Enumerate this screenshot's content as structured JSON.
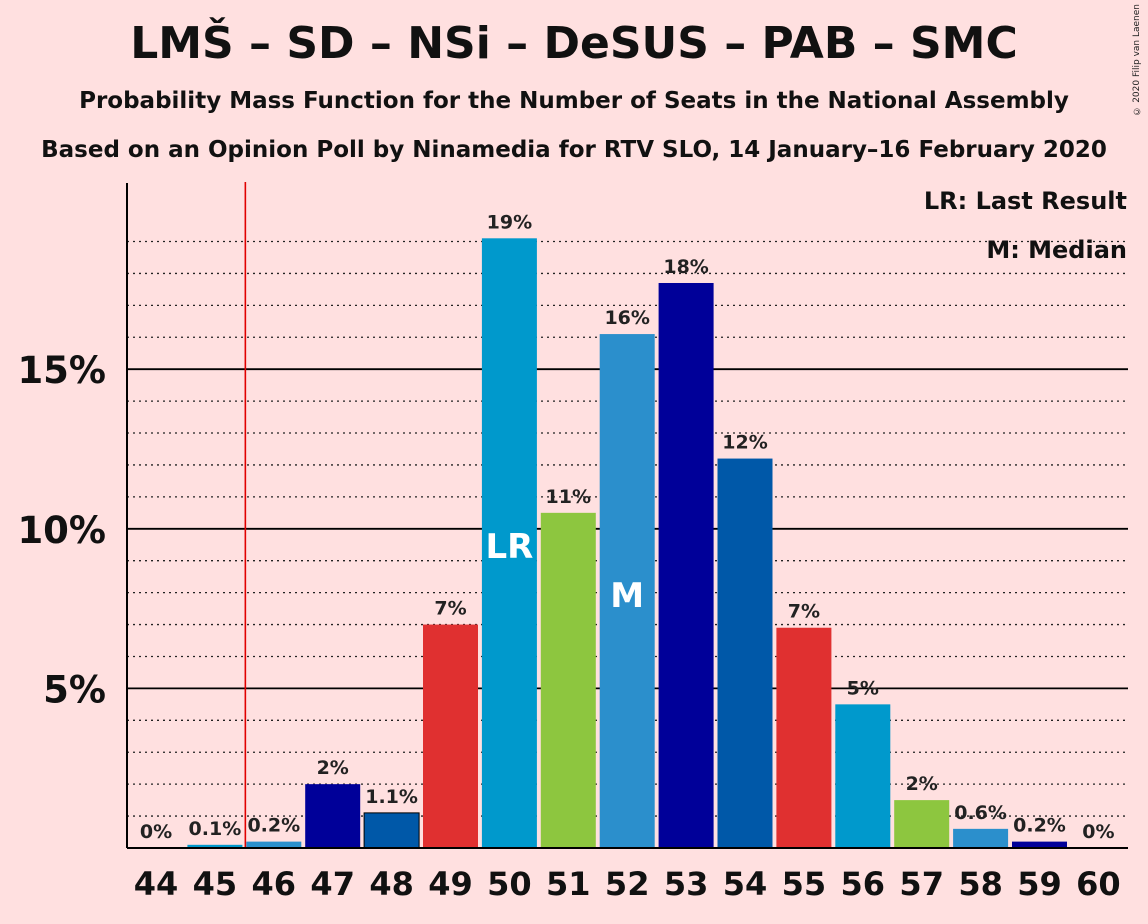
{
  "title": "LMŠ – SD – NSi – DeSUS – PAB – SMC",
  "subtitle1": "Probability Mass Function for the Number of Seats in the National Assembly",
  "subtitle2": "Based on an Opinion Poll by Ninamedia for RTV SLO, 14 January–16 February 2020",
  "copyright": "© 2020 Filip van Laenen",
  "chart_data": {
    "type": "bar",
    "categories": [
      "44",
      "45",
      "46",
      "47",
      "48",
      "49",
      "50",
      "51",
      "52",
      "53",
      "54",
      "55",
      "56",
      "57",
      "58",
      "59",
      "60"
    ],
    "values": [
      0,
      0.1,
      0.2,
      2.0,
      1.1,
      7.0,
      19.1,
      10.5,
      16.1,
      17.7,
      12.2,
      6.9,
      4.5,
      1.5,
      0.6,
      0.2,
      0
    ],
    "value_labels": [
      "0%",
      "0.1%",
      "0.2%",
      "2%",
      "1.1%",
      "7%",
      "19%",
      "11%",
      "16%",
      "18%",
      "12%",
      "7%",
      "5%",
      "2%",
      "0.6%",
      "0.2%",
      "0%"
    ],
    "colors": [
      "#0099cc",
      "#0099cc",
      "#2b8fcc",
      "#000099",
      "#0058a8",
      "#e03030",
      "#0099cc",
      "#8dc63f",
      "#2b8fcc",
      "#000099",
      "#0058a8",
      "#e03030",
      "#0099cc",
      "#8dc63f",
      "#2b8fcc",
      "#000099",
      "#0058a8"
    ],
    "ylim": [
      0,
      20.5
    ],
    "yticks": [
      5,
      10,
      15
    ],
    "ytick_labels": [
      "5%",
      "10%",
      "15%"
    ],
    "minor_gridline_step": 1,
    "last_result_seat": "45.5",
    "last_result_bar": "50",
    "last_result_label": "LR",
    "median_bar": "52",
    "median_label": "M",
    "legend": [
      "LR: Last Result",
      "M: Median"
    ],
    "legend_position": "top-right"
  }
}
